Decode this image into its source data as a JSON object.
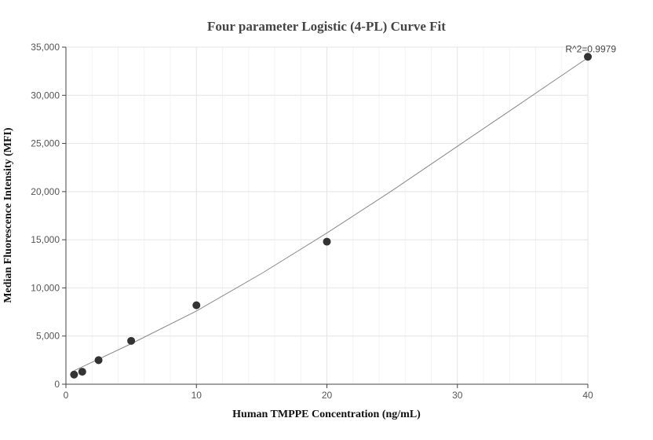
{
  "chart_data": {
    "type": "scatter",
    "title": "Four parameter Logistic (4-PL) Curve Fit",
    "xlabel": "Human TMPPE Concentration (ng/mL)",
    "ylabel": "Median Fluorescence Intensity (MFI)",
    "xlim": [
      0,
      40
    ],
    "ylim": [
      0,
      35000
    ],
    "x_ticks": [
      0,
      10,
      20,
      30,
      40
    ],
    "x_tick_labels": [
      "0",
      "10",
      "20",
      "30",
      "40"
    ],
    "y_ticks": [
      0,
      5000,
      10000,
      15000,
      20000,
      25000,
      30000,
      35000
    ],
    "y_tick_labels": [
      "0",
      "5,000",
      "10,000",
      "15,000",
      "20,000",
      "25,000",
      "30,000",
      "35,000"
    ],
    "grid": true,
    "series": [
      {
        "kind": "points",
        "color": "#333333",
        "x": [
          0.625,
          1.25,
          2.5,
          5,
          10,
          20,
          40
        ],
        "y": [
          1000,
          1300,
          2500,
          4500,
          8200,
          14800,
          34000
        ]
      },
      {
        "kind": "fit-curve",
        "color": "#888888",
        "x": [
          0.625,
          2.5,
          5,
          10,
          15,
          20,
          25,
          30,
          35,
          40
        ],
        "y": [
          1400,
          2600,
          4200,
          7600,
          11500,
          15700,
          20100,
          24700,
          29300,
          33900
        ]
      }
    ],
    "annotations": [
      {
        "text": "R^2=0.9979",
        "x": 40,
        "y": 34000
      }
    ]
  }
}
